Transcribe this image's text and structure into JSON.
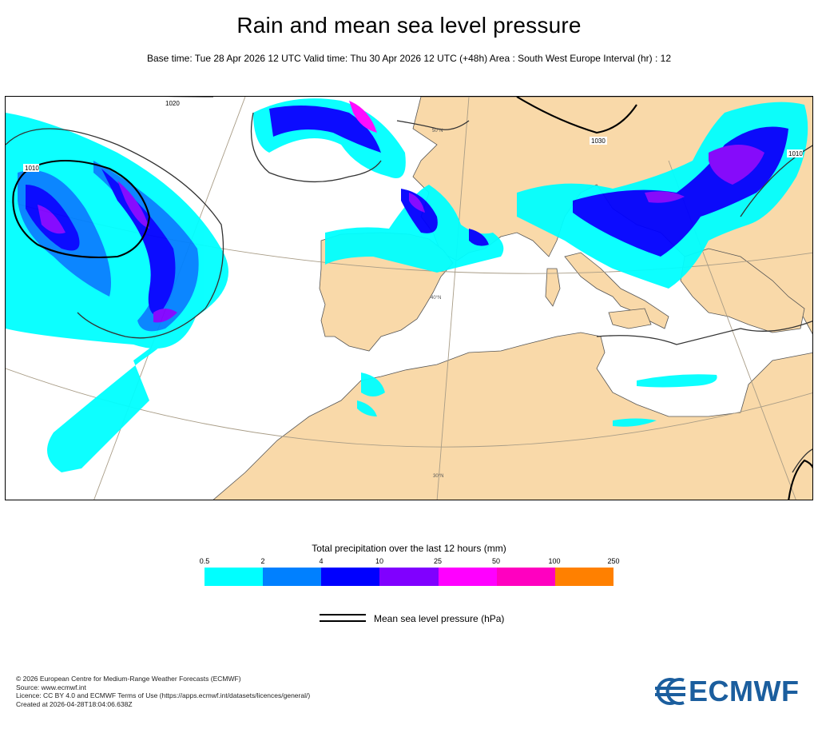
{
  "title": "Rain and mean sea level pressure",
  "subtitle": "Base time: Tue 28 Apr 2026 12 UTC Valid time: Thu 30 Apr 2026 12 UTC (+48h) Area : South West Europe Interval (hr) : 12",
  "map": {
    "isobar_labels": [
      "1020",
      "1010",
      "1030",
      "1010"
    ],
    "graticule_labels": [
      "40°N",
      "30°N",
      "50°N"
    ],
    "colors": {
      "land": "#f9d9a9",
      "sea": "#ffffff",
      "isobar": "#000000",
      "graticule": "#a89c86"
    }
  },
  "legend": {
    "title": "Total precipitation over the last 12 hours (mm)",
    "ticks": [
      "0.5",
      "2",
      "4",
      "10",
      "25",
      "50",
      "100",
      "250"
    ],
    "colors": [
      "#00ffff",
      "#0080ff",
      "#0000ff",
      "#8000ff",
      "#ff00ff",
      "#ff00c0",
      "#ff8000",
      "#ff0000"
    ]
  },
  "mslp_legend": {
    "label": "Mean sea level pressure (hPa)"
  },
  "footer": [
    "© 2026 European Centre for Medium-Range Weather Forecasts (ECMWF)",
    "Source: www.ecmwf.int",
    "Licence: CC BY 4.0 and ECMWF Terms of Use (https://apps.ecmwf.int/datasets/licences/general/)",
    "Created at 2026-04-28T18:04:06.638Z"
  ],
  "logo": {
    "text": "ECMWF",
    "color": "#1b5e9e"
  }
}
